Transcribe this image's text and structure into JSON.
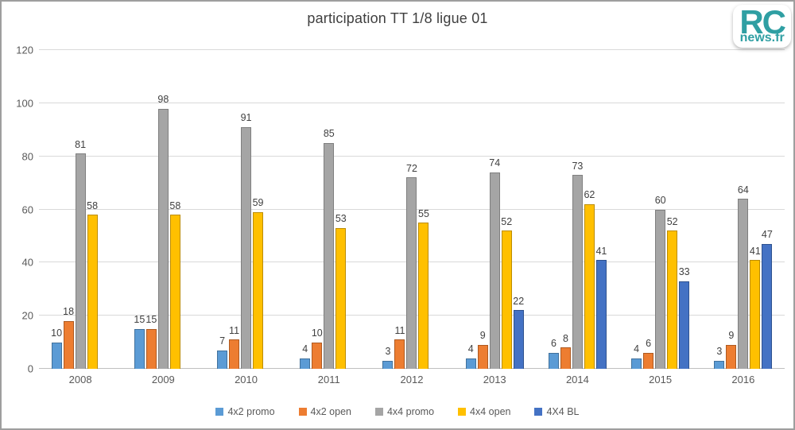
{
  "logo": {
    "primary": "RC",
    "secondary": "news.fr",
    "color": "#2f9fa3"
  },
  "chart_data": {
    "type": "bar",
    "title": "participation TT 1/8 ligue 01",
    "categories": [
      "2008",
      "2009",
      "2010",
      "2011",
      "2012",
      "2013",
      "2014",
      "2015",
      "2016"
    ],
    "series": [
      {
        "name": "4x2 promo",
        "color": "#5B9BD5",
        "border": "#41719C",
        "values": [
          10,
          15,
          7,
          4,
          3,
          4,
          6,
          4,
          3
        ]
      },
      {
        "name": "4x2 open",
        "color": "#ED7D31",
        "border": "#AE5A21",
        "values": [
          18,
          15,
          11,
          10,
          11,
          9,
          8,
          6,
          9
        ]
      },
      {
        "name": "4x4 promo",
        "color": "#A5A5A5",
        "border": "#7F7F7F",
        "values": [
          81,
          98,
          91,
          85,
          72,
          74,
          73,
          60,
          64
        ]
      },
      {
        "name": "4x4 open",
        "color": "#FFC000",
        "border": "#BC8C00",
        "values": [
          58,
          58,
          59,
          53,
          55,
          52,
          62,
          52,
          41
        ]
      },
      {
        "name": "4X4 BL",
        "color": "#4472C4",
        "border": "#2F528F",
        "values": [
          null,
          null,
          null,
          null,
          null,
          22,
          41,
          33,
          47
        ]
      }
    ],
    "ylim": [
      0,
      120
    ],
    "yticks": [
      0,
      20,
      40,
      60,
      80,
      100,
      120
    ],
    "grid": true,
    "legend_position": "bottom",
    "xlabel": "",
    "ylabel": ""
  }
}
